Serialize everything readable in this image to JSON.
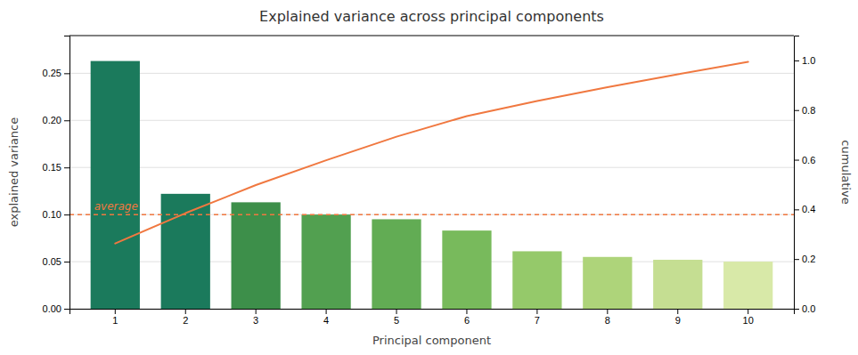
{
  "chart_data": {
    "type": "bar",
    "title": "Explained variance across principal components",
    "xlabel": "Principal component",
    "ylabel": "explained variance",
    "y2label": "cumulative",
    "categories": [
      "1",
      "2",
      "3",
      "4",
      "5",
      "6",
      "7",
      "8",
      "9",
      "10"
    ],
    "series": [
      {
        "type": "bar",
        "colors": [
          "#1b7a5c",
          "#1b7a5c",
          "#3d8f4a",
          "#52a050",
          "#62ac54",
          "#78ba5c",
          "#95c96a",
          "#aed47a",
          "#c5de92",
          "#d8e9a8"
        ],
        "values": [
          0.263,
          0.122,
          0.113,
          0.1,
          0.095,
          0.083,
          0.061,
          0.055,
          0.052,
          0.05
        ]
      },
      {
        "type": "line",
        "axis": "y2",
        "color": "#f07840",
        "values": [
          0.263,
          0.385,
          0.498,
          0.598,
          0.693,
          0.776,
          0.837,
          0.892,
          0.944,
          0.994
        ]
      }
    ],
    "annotations": [
      {
        "text": "average",
        "value": 0.1,
        "color": "#f07840",
        "line_style": "dashed"
      }
    ],
    "ylim": [
      0.0,
      0.29
    ],
    "yticks": [
      {
        "value": 0.0,
        "label": "0.00"
      },
      {
        "value": 0.05,
        "label": "0.05"
      },
      {
        "value": 0.1,
        "label": "0.10"
      },
      {
        "value": 0.15,
        "label": "0.15"
      },
      {
        "value": 0.2,
        "label": "0.20"
      },
      {
        "value": 0.25,
        "label": "0.25"
      }
    ],
    "y2lim": [
      0.0,
      1.1
    ],
    "y2ticks": [
      {
        "value": 0.0,
        "label": "0.0"
      },
      {
        "value": 0.2,
        "label": "0.2"
      },
      {
        "value": 0.4,
        "label": "0.4"
      },
      {
        "value": 0.6,
        "label": "0.6"
      },
      {
        "value": 0.8,
        "label": "0.8"
      },
      {
        "value": 1.0,
        "label": "1.0"
      }
    ],
    "grid": true
  }
}
